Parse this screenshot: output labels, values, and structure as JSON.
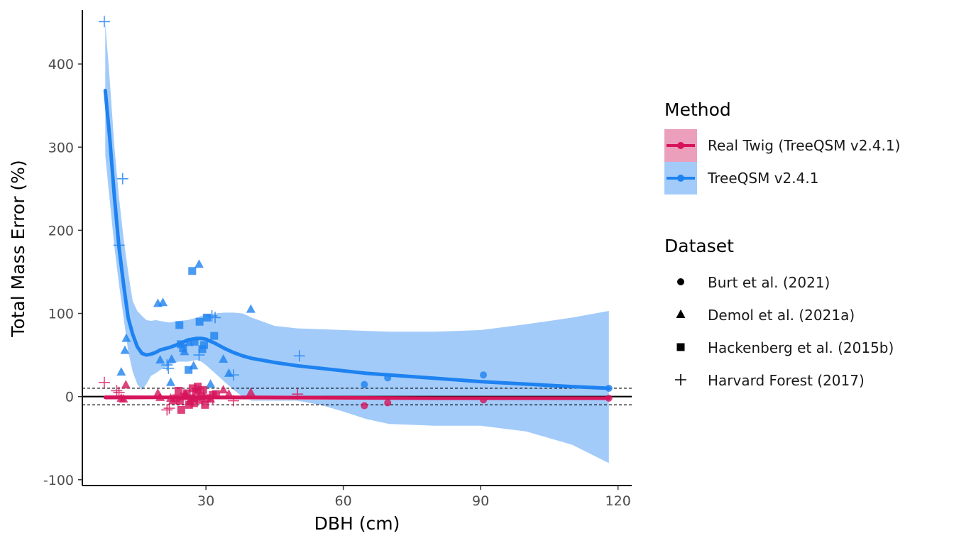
{
  "chart_data": {
    "type": "scatter",
    "xlabel": "DBH (cm)",
    "ylabel": "Total Mass Error (%)",
    "xlim": [
      3,
      123
    ],
    "ylim": [
      -107,
      465
    ],
    "x_ticks": [
      30,
      60,
      90,
      120
    ],
    "y_ticks": [
      -100,
      0,
      100,
      200,
      300,
      400
    ],
    "grid": false,
    "reference_lines": {
      "solid": [
        0
      ],
      "dashed": [
        10,
        -10
      ]
    },
    "legend_position": "right",
    "legend": {
      "method_title": "Method",
      "methods": [
        {
          "key": "real",
          "label": "Real Twig (TreeQSM v2.4.1)",
          "color": "#D6145B",
          "fill": "#EB9FBA"
        },
        {
          "key": "tq",
          "label": "TreeQSM v2.4.1",
          "color": "#1E82F0",
          "fill": "#A2CBFA"
        }
      ],
      "dataset_title": "Dataset",
      "datasets": [
        {
          "key": "burt",
          "label": "Burt et al. (2021)",
          "shape": "circle"
        },
        {
          "key": "demol",
          "label": "Demol et al. (2021a)",
          "shape": "triangle"
        },
        {
          "key": "hack",
          "label": "Hackenberg et al. (2015b)",
          "shape": "square"
        },
        {
          "key": "harv",
          "label": "Harvard Forest (2017)",
          "shape": "plus"
        }
      ]
    },
    "series": [
      {
        "name": "TreeQSM v2.4.1",
        "method": "tq",
        "smooth": {
          "x": [
            8,
            9,
            10,
            11,
            12,
            13,
            14,
            15,
            16,
            17,
            18,
            19,
            20,
            22,
            24,
            26,
            28,
            29,
            30,
            32,
            34,
            36,
            38,
            40,
            45,
            50,
            55,
            60,
            65,
            70,
            80,
            90,
            100,
            110,
            118
          ],
          "y": [
            368,
            310,
            240,
            180,
            135,
            95,
            75,
            60,
            52,
            50,
            51,
            53,
            56,
            59,
            63,
            68,
            70,
            70,
            69,
            64,
            58,
            53,
            49,
            46,
            41,
            37,
            34,
            31,
            28,
            26,
            22,
            18,
            15,
            12,
            10
          ],
          "upper": [
            450,
            380,
            300,
            240,
            190,
            150,
            115,
            103,
            97,
            92,
            91,
            92,
            91,
            89,
            91,
            92,
            95,
            97,
            99,
            100,
            101,
            101,
            100,
            95,
            85,
            82,
            81,
            80,
            79,
            78,
            78,
            80,
            87,
            95,
            103
          ],
          "lower": [
            290,
            235,
            180,
            135,
            95,
            55,
            30,
            15,
            8,
            15,
            25,
            28,
            32,
            38,
            42,
            42,
            44,
            42,
            38,
            28,
            18,
            8,
            0,
            -5,
            -5,
            -5,
            -10,
            -18,
            -27,
            -33,
            -35,
            -35,
            -42,
            -58,
            -80
          ]
        },
        "points": [
          {
            "dataset": "burt",
            "x": [
              64.6,
              69.7,
              90.6,
              118.0
            ],
            "y": [
              14.5,
              22.5,
              26.0,
              10.0
            ]
          },
          {
            "dataset": "demol",
            "x": [
              11.5,
              12.3,
              12.6,
              19.5,
              20.0,
              20.6,
              22.3,
              22.5,
              25.3,
              26.3,
              27.3,
              28.5,
              31.0,
              33.8,
              35.0,
              39.8
            ],
            "y": [
              29.5,
              55.5,
              70.0,
              112.0,
              44.0,
              113.0,
              17.0,
              45.0,
              54.0,
              65.0,
              37.0,
              159.0,
              15.0,
              45.0,
              28.0,
              105.0
            ]
          },
          {
            "dataset": "hack",
            "x": [
              24.2,
              24.5,
              25.0,
              26.2,
              27.0,
              27.5,
              28.6,
              29.2,
              29.6,
              30.2,
              31.8
            ],
            "y": [
              86.0,
              63.0,
              58.0,
              32.0,
              151.0,
              66.0,
              90.0,
              57.0,
              62.0,
              95.0,
              73.0
            ]
          },
          {
            "dataset": "harv",
            "x": [
              7.8,
              11.0,
              11.8,
              21.5,
              21.8,
              28.5,
              31.3,
              32.0,
              36.0,
              50.4
            ],
            "y": [
              451.0,
              182.0,
              262.0,
              38.0,
              34.0,
              50.0,
              97.0,
              95.0,
              26.0,
              49.0
            ]
          }
        ]
      },
      {
        "name": "Real Twig (TreeQSM v2.4.1)",
        "method": "real",
        "smooth": {
          "x": [
            8,
            20,
            40,
            60,
            80,
            100,
            118
          ],
          "y": [
            -1,
            -1,
            -1,
            -1.5,
            -2,
            -2,
            -2
          ],
          "upper": [
            2,
            1,
            1,
            1,
            0,
            0,
            0
          ],
          "lower": [
            -4,
            -3,
            -4,
            -4,
            -4,
            -4,
            -4
          ]
        },
        "points": [
          {
            "dataset": "burt",
            "x": [
              64.6,
              69.7,
              90.6,
              118.0
            ],
            "y": [
              -11.0,
              -7.5,
              -4.0,
              -2.0
            ]
          },
          {
            "dataset": "demol",
            "x": [
              11.5,
              12.0,
              12.5,
              19.5,
              20.0,
              22.3,
              22.8,
              25.5,
              26.5,
              27.3,
              28.3,
              31.0,
              33.8,
              35.0,
              39.8
            ],
            "y": [
              -2.0,
              -3.0,
              14.0,
              4.0,
              -1.0,
              -2.0,
              -5.0,
              3.0,
              -6.0,
              -2.0,
              8.0,
              -3.0,
              8.0,
              3.0,
              5.0
            ]
          },
          {
            "dataset": "hack",
            "x": [
              23.5,
              24.0,
              24.3,
              24.6,
              25.2,
              25.8,
              26.3,
              26.8,
              27.1,
              27.4,
              27.8,
              28.2,
              28.6,
              29.0,
              29.4,
              29.8,
              30.3,
              31.5,
              32.2
            ],
            "y": [
              -2.0,
              7.0,
              -5.0,
              -16.0,
              0.0,
              4.0,
              -10.0,
              -2.0,
              10.0,
              -8.0,
              6.0,
              12.0,
              -4.0,
              0.0,
              8.0,
              -10.0,
              -2.0,
              2.0,
              3.0
            ]
          },
          {
            "dataset": "harv",
            "x": [
              7.8,
              10.5,
              11.0,
              21.5,
              22.0,
              29.5,
              31.5,
              36.0,
              50.0
            ],
            "y": [
              17.0,
              7.0,
              5.0,
              -16.0,
              -14.0,
              2.0,
              -2.0,
              -5.0,
              3.0
            ]
          }
        ]
      }
    ]
  }
}
